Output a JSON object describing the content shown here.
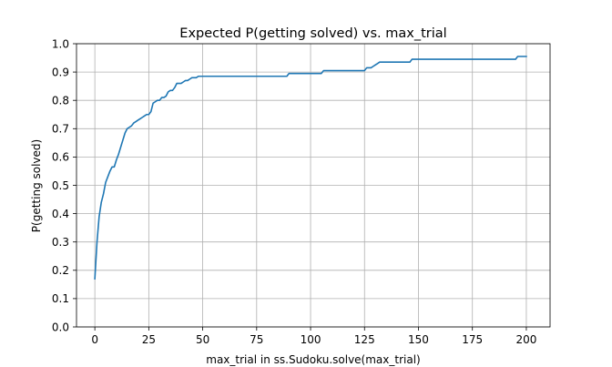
{
  "chart_data": {
    "type": "line",
    "title": "Expected P(getting solved) vs. max_trial",
    "xlabel": "max_trial in ss.Sudoku.solve(max_trial)",
    "ylabel": "P(getting solved)",
    "xlim": [
      -8.5,
      211
    ],
    "ylim": [
      0.0,
      1.0
    ],
    "xticks": [
      0,
      25,
      50,
      75,
      100,
      125,
      150,
      175,
      200
    ],
    "yticks": [
      0.0,
      0.1,
      0.2,
      0.3,
      0.4,
      0.5,
      0.6,
      0.7,
      0.8,
      0.9,
      1.0
    ],
    "xtick_labels": [
      "0",
      "25",
      "50",
      "75",
      "100",
      "125",
      "150",
      "175",
      "200"
    ],
    "ytick_labels": [
      "0.0",
      "0.1",
      "0.2",
      "0.3",
      "0.4",
      "0.5",
      "0.6",
      "0.7",
      "0.8",
      "0.9",
      "1.0"
    ],
    "grid": true,
    "series": [
      {
        "color": "#1f77b4",
        "x": [
          0,
          1,
          2,
          3,
          4,
          5,
          6,
          7,
          8,
          9,
          10,
          11,
          12,
          13,
          14,
          15,
          16,
          17,
          18,
          19,
          20,
          21,
          22,
          23,
          24,
          25,
          26,
          27,
          28,
          29,
          30,
          31,
          32,
          33,
          34,
          35,
          36,
          37,
          38,
          40,
          41,
          42,
          43,
          44,
          45,
          46,
          47,
          48,
          49,
          50,
          60,
          70,
          80,
          89,
          90,
          95,
          100,
          105,
          106,
          110,
          120,
          125,
          126,
          127,
          128,
          129,
          130,
          131,
          132,
          140,
          146,
          147,
          160,
          180,
          195,
          196,
          200
        ],
        "y": [
          0.17,
          0.3,
          0.39,
          0.44,
          0.47,
          0.51,
          0.53,
          0.55,
          0.565,
          0.565,
          0.59,
          0.61,
          0.635,
          0.66,
          0.685,
          0.7,
          0.705,
          0.71,
          0.72,
          0.725,
          0.73,
          0.735,
          0.74,
          0.745,
          0.75,
          0.75,
          0.76,
          0.79,
          0.795,
          0.8,
          0.8,
          0.81,
          0.81,
          0.815,
          0.83,
          0.835,
          0.835,
          0.845,
          0.86,
          0.86,
          0.865,
          0.87,
          0.87,
          0.875,
          0.88,
          0.88,
          0.88,
          0.885,
          0.885,
          0.885,
          0.885,
          0.885,
          0.885,
          0.885,
          0.895,
          0.895,
          0.895,
          0.895,
          0.905,
          0.905,
          0.905,
          0.905,
          0.915,
          0.915,
          0.915,
          0.92,
          0.925,
          0.93,
          0.935,
          0.935,
          0.935,
          0.945,
          0.945,
          0.945,
          0.945,
          0.955,
          0.955
        ]
      }
    ]
  }
}
